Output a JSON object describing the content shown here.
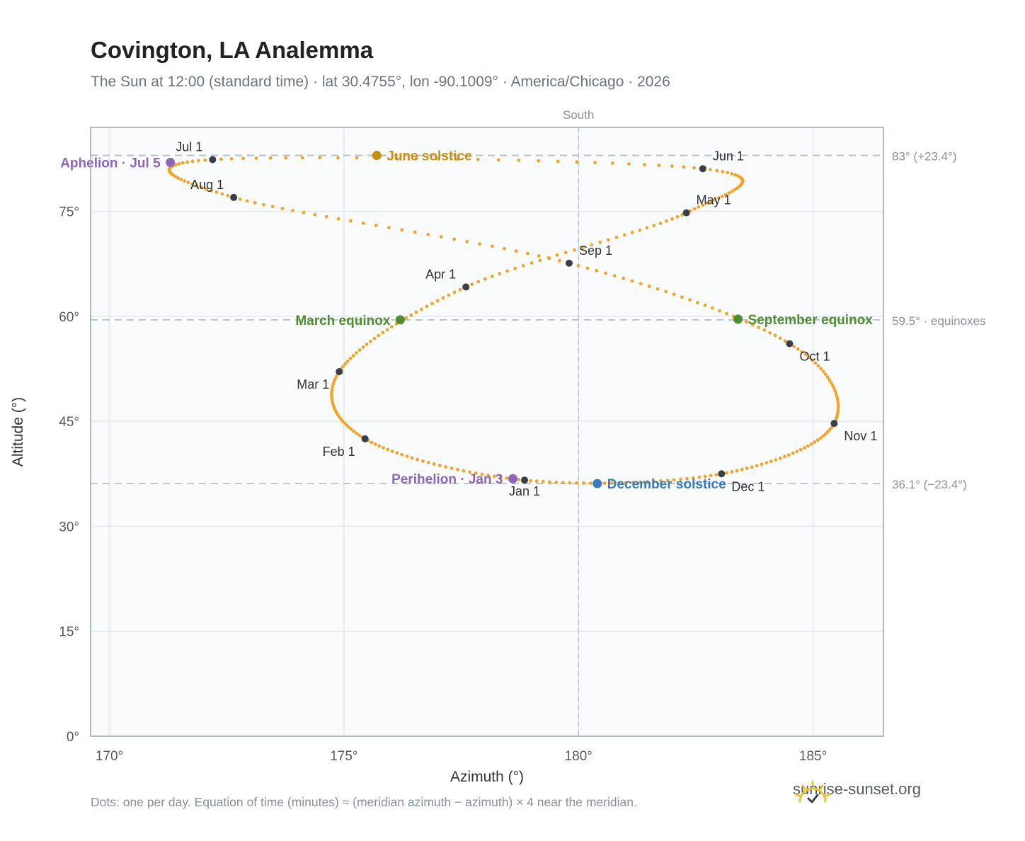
{
  "header": {
    "title": "Covington, LA Analemma",
    "subtitle": "The Sun at 12:00 (standard time) · lat 30.4755°, lon -90.1009° · America/Chicago · 2026"
  },
  "footer": {
    "note": "Dots: one per day. Equation of time (minutes) ≈ (meridian azimuth − azimuth) × 4 near the meridian.",
    "brand": "sunrise-sunset.org"
  },
  "chart_data": {
    "type": "scatter",
    "xlabel": "Azimuth (°)",
    "ylabel": "Altitude (°)",
    "xlim": [
      169.6,
      186.5
    ],
    "ylim": [
      0,
      87
    ],
    "x_ticks": [
      170,
      175,
      180,
      185
    ],
    "x_tick_labels": [
      "170°",
      "175°",
      "180°",
      "185°"
    ],
    "y_ticks": [
      0,
      15,
      30,
      45,
      60,
      75
    ],
    "y_tick_labels": [
      "0°",
      "15°",
      "30°",
      "45°",
      "60°",
      "75°"
    ],
    "grid": true,
    "south": {
      "azimuth": 180,
      "label": "South"
    },
    "reference_lines": [
      {
        "altitude": 83.0,
        "label": "83° (+23.4°)"
      },
      {
        "altitude": 59.5,
        "label": "59.5° · equinoxes"
      },
      {
        "altitude": 36.1,
        "label": "36.1° (−23.4°)"
      }
    ],
    "path_color": "#f2a52a",
    "month_color": "#3a3f47",
    "month_markers": [
      {
        "label": "Jan 1",
        "az": 178.85,
        "alt": 36.6,
        "pos": "below"
      },
      {
        "label": "Feb 1",
        "az": 175.45,
        "alt": 42.5,
        "pos": "below-left"
      },
      {
        "label": "Mar 1",
        "az": 174.9,
        "alt": 52.1,
        "pos": "below-left"
      },
      {
        "label": "Apr 1",
        "az": 177.6,
        "alt": 64.2,
        "pos": "above-left"
      },
      {
        "label": "May 1",
        "az": 182.3,
        "alt": 74.8,
        "pos": "above-right"
      },
      {
        "label": "Jun 1",
        "az": 182.65,
        "alt": 81.1,
        "pos": "above-right"
      },
      {
        "label": "Jul 1",
        "az": 172.2,
        "alt": 82.4,
        "pos": "above-left"
      },
      {
        "label": "Aug 1",
        "az": 172.65,
        "alt": 77.0,
        "pos": "above-left"
      },
      {
        "label": "Sep 1",
        "az": 179.8,
        "alt": 67.6,
        "pos": "above-right"
      },
      {
        "label": "Oct 1",
        "az": 184.5,
        "alt": 56.1,
        "pos": "below-right"
      },
      {
        "label": "Nov 1",
        "az": 185.45,
        "alt": 44.7,
        "pos": "below-right"
      },
      {
        "label": "Dec 1",
        "az": 183.05,
        "alt": 37.5,
        "pos": "below-right"
      }
    ],
    "events": [
      {
        "label": "June solstice",
        "az": 175.7,
        "alt": 83.0,
        "color": "#c9900f",
        "pos": "right"
      },
      {
        "label": "March equinox",
        "az": 176.2,
        "alt": 59.5,
        "color": "#4e8e2e",
        "pos": "left"
      },
      {
        "label": "September equinox",
        "az": 183.4,
        "alt": 59.6,
        "color": "#4e8e2e",
        "pos": "right"
      },
      {
        "label": "December solstice",
        "az": 180.4,
        "alt": 36.1,
        "color": "#3a7bc0",
        "pos": "right"
      },
      {
        "label": "Perihelion · Jan 3",
        "az": 178.6,
        "alt": 36.8,
        "color": "#8c67b8",
        "pos": "left"
      },
      {
        "label": "Aphelion · Jul 5",
        "az": 171.3,
        "alt": 82.0,
        "color": "#8c67b8",
        "pos": "left"
      }
    ]
  }
}
